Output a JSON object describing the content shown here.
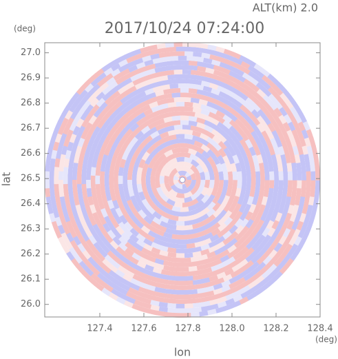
{
  "chart_data": {
    "type": "radar-ppi",
    "title": "2017/10/24 07:24:00",
    "subtitle": "ALT(km) 2.0",
    "x_label": "lon",
    "y_label": "lat",
    "x_unit": "(deg)",
    "y_unit": "(deg)",
    "xlim": [
      127.15,
      128.4
    ],
    "ylim": [
      25.95,
      27.04
    ],
    "xticks": [
      127.4,
      127.6,
      127.8,
      {
        "value": 128,
        "label": "128.0"
      },
      128.2,
      128.4
    ],
    "yticks": [
      {
        "value": 26,
        "label": "26.0"
      },
      26.1,
      26.2,
      26.3,
      26.4,
      26.5,
      26.6,
      26.7,
      26.8,
      26.9,
      {
        "value": 27,
        "label": "27.0"
      }
    ]
  }
}
